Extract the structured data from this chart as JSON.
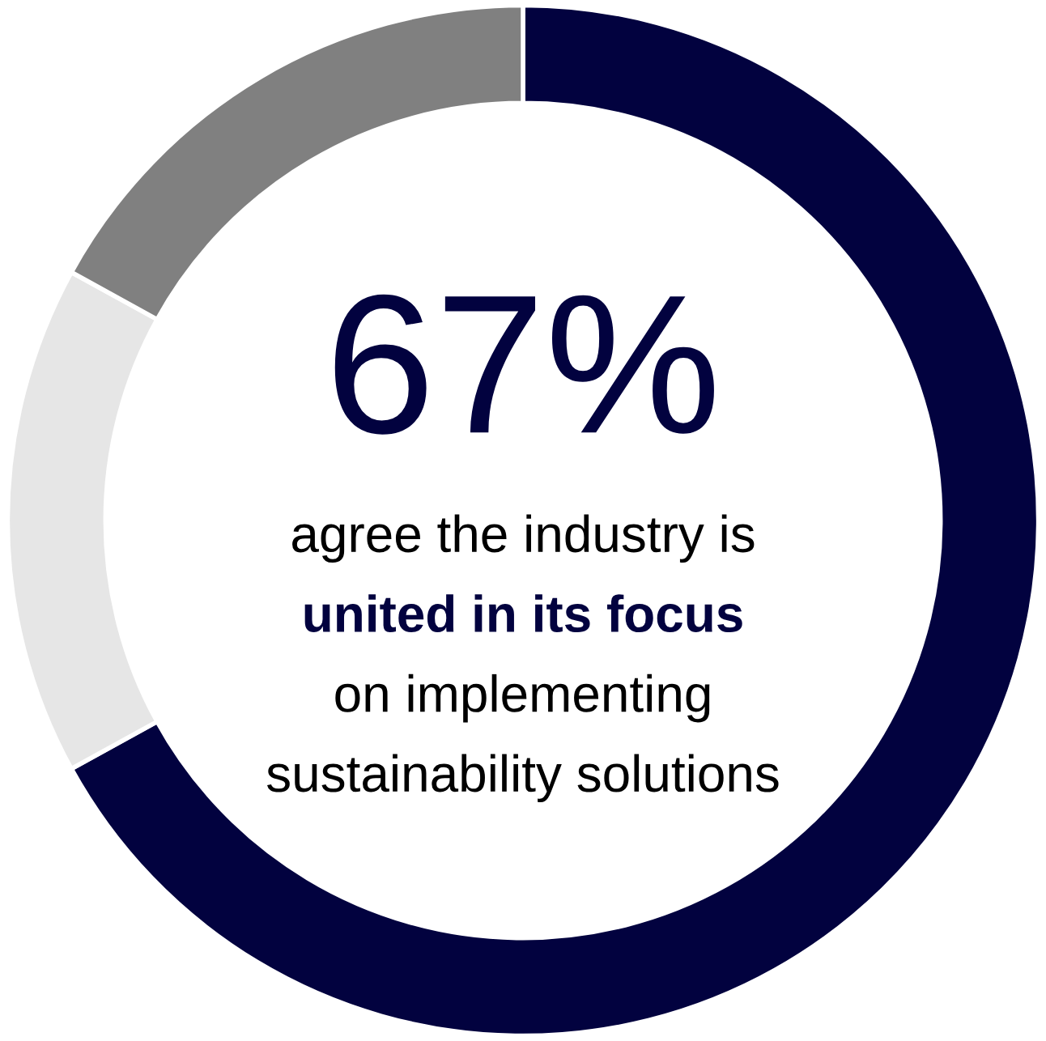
{
  "chart_data": {
    "type": "donut",
    "categories": [
      null,
      null,
      null
    ],
    "values": [
      67,
      16,
      17
    ],
    "colors": [
      "#02023f",
      "#e6e6e6",
      "#808080"
    ],
    "annotations": [
      "67%",
      "agree the industry is",
      "united in its focus",
      "on implementing",
      "sustainability solutions"
    ]
  }
}
